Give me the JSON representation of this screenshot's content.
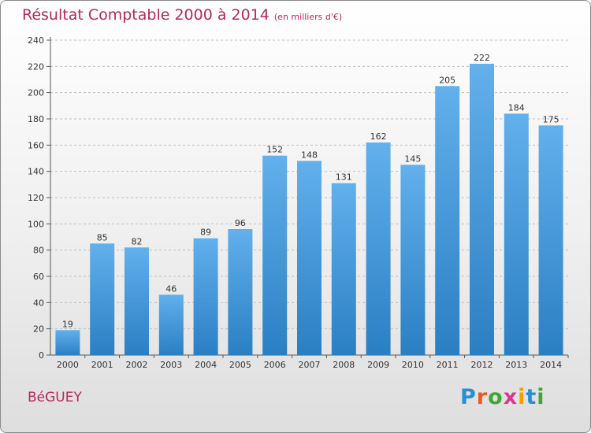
{
  "header": {
    "title": "Résultat Comptable 2000 à 2014",
    "subtitle": "(en milliers d'€)"
  },
  "footer": {
    "commune": "BéGUEY",
    "logo_letters": [
      "P",
      "r",
      "o",
      "x",
      "i",
      "t",
      "i"
    ],
    "logo_colors": [
      "#2a8fd0",
      "#e8582a",
      "#3fa535",
      "#d63a8d",
      "#f2a200",
      "#2a8fd0",
      "#3fa535"
    ]
  },
  "colors": {
    "bar_light": "#62b0ec",
    "bar_dark": "#2a7fc3",
    "grid": "#bfbfbf",
    "accent": "#b5285d"
  },
  "chart_data": {
    "type": "bar",
    "categories": [
      "2000",
      "2001",
      "2002",
      "2003",
      "2004",
      "2005",
      "2006",
      "2007",
      "2008",
      "2009",
      "2010",
      "2011",
      "2012",
      "2013",
      "2014"
    ],
    "values": [
      19,
      85,
      82,
      46,
      89,
      96,
      152,
      148,
      131,
      162,
      145,
      205,
      222,
      184,
      175
    ],
    "data_labels": [
      "19",
      "85",
      "82",
      "46",
      "89",
      "96",
      "152",
      "148",
      "131",
      "162",
      "145",
      "205",
      "222",
      "184",
      "175"
    ],
    "yticks": [
      "0",
      "20",
      "40",
      "60",
      "80",
      "100",
      "120",
      "140",
      "160",
      "180",
      "200",
      "220",
      "240"
    ],
    "ylim": [
      0,
      240
    ],
    "grid": true
  }
}
